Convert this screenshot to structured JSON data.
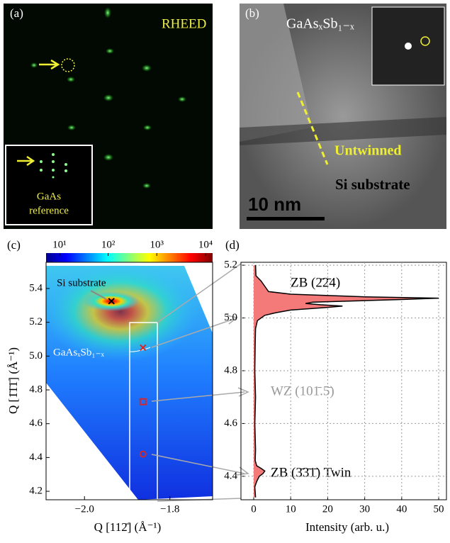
{
  "panels": {
    "a": {
      "label": "(a)",
      "title": "RHEED",
      "inset_label": [
        "GaAs",
        "reference"
      ]
    },
    "b": {
      "label": "(b)",
      "material": "GaAsₓSb₁₋ₓ",
      "annotation": "Untwinned",
      "substrate": "Si substrate",
      "scale_bar": "10 nm"
    }
  },
  "chart_data": [
    {
      "type": "heatmap",
      "panel_label": "(c)",
      "xlabel": "Q [112̄] (Å⁻¹)",
      "ylabel": "Q [1̄1̄1̄] (Å⁻¹)",
      "xlim": [
        -2.09,
        -1.7
      ],
      "ylim": [
        4.15,
        5.555
      ],
      "xticks": [
        {
          "value": -2.0,
          "label": "−2.0"
        },
        {
          "value": -1.8,
          "label": "−1.8"
        }
      ],
      "yticks": [
        {
          "value": 4.2,
          "label": "4.2"
        },
        {
          "value": 4.4,
          "label": "4.4"
        },
        {
          "value": 4.6,
          "label": "4.6"
        },
        {
          "value": 4.8,
          "label": "4.8"
        },
        {
          "value": 5.0,
          "label": "5.0"
        },
        {
          "value": 5.2,
          "label": "5.2"
        },
        {
          "value": 5.4,
          "label": "5.4"
        }
      ],
      "colorbar": {
        "log_scale": true,
        "clim": [
          5.3,
          14000
        ],
        "ticks": [
          {
            "value": 10,
            "label": "10¹"
          },
          {
            "value": 100,
            "label": "10²"
          },
          {
            "value": 1000,
            "label": "10³"
          },
          {
            "value": 10000,
            "label": "10⁴"
          }
        ]
      },
      "annotations": [
        "Si substrate",
        "GaAsₓSb₁₋ₓ"
      ],
      "markers": [
        {
          "x": -1.937,
          "y": 5.325,
          "marker": "x",
          "color": "#000000"
        },
        {
          "x": -1.863,
          "y": 5.05,
          "marker": "x",
          "color": "#d62728"
        },
        {
          "x": -1.863,
          "y": 4.73,
          "marker": "square",
          "color": "#d62728"
        },
        {
          "x": -1.863,
          "y": 4.42,
          "marker": "circle",
          "color": "#d62728"
        }
      ]
    },
    {
      "type": "line",
      "orientation": "horizontal",
      "panel_label": "(d)",
      "xlabel": "Intensity (arb. u.)",
      "color": "#000000",
      "fill": "#f47a7a",
      "grid": true,
      "xlim": [
        -3.45,
        52.1
      ],
      "ylim": [
        4.311,
        5.211
      ],
      "xticks": [
        0,
        10,
        20,
        30,
        40,
        50
      ],
      "yticks": [
        {
          "value": 4.4,
          "label": "4.4"
        },
        {
          "value": 4.6,
          "label": "4.6"
        },
        {
          "value": 4.8,
          "label": "4.8"
        },
        {
          "value": 5.0,
          "label": "5.0"
        },
        {
          "value": 5.2,
          "label": "5.2"
        }
      ],
      "annotations": [
        "ZB (2̄2̄4)",
        "WZ (101̄.5̄)",
        "ZB (3̄3̄1̄) Twin"
      ],
      "x": [
        4.32,
        4.36,
        4.38,
        4.4,
        4.41,
        4.42,
        4.43,
        4.44,
        4.46,
        4.5,
        4.6,
        4.7,
        4.8,
        4.9,
        4.96,
        4.99,
        5.0,
        5.01,
        5.02,
        5.03,
        5.04,
        5.045,
        5.05,
        5.055,
        5.06,
        5.07,
        5.075,
        5.08,
        5.09,
        5.1,
        5.12,
        5.14,
        5.16,
        5.2
      ],
      "values": [
        0.5,
        0.3,
        0.8,
        1.5,
        2.5,
        3,
        2,
        0.8,
        0.4,
        0.5,
        0.3,
        0.5,
        0.3,
        0.4,
        0.5,
        1,
        2,
        3,
        6,
        10,
        20,
        24,
        18,
        14,
        16,
        40,
        50,
        30,
        10,
        4,
        3,
        2,
        0.6,
        0.5
      ]
    }
  ]
}
